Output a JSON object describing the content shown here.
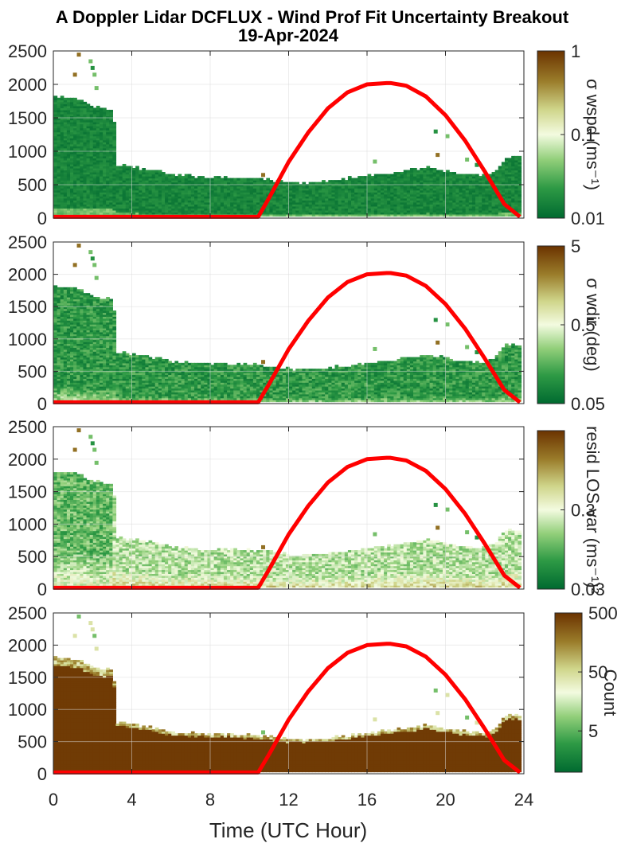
{
  "figure": {
    "title_line1": "A Doppler Lidar DCFLUX - Wind Prof Fit Uncertainty Breakout",
    "title_line2": "19-Apr-2024",
    "xlabel": "Time (UTC Hour)"
  },
  "colors": {
    "sun_curve": "#ff0000",
    "cmap_low": "#006a30",
    "cmap_mid": "#f3fbe0",
    "cmap_high": "#6b3300"
  },
  "chart_data": [
    {
      "type": "heatmap",
      "name": "sigma wspd",
      "colorbar_label": "σ wspd (ms⁻¹)",
      "colorbar_scale": "log",
      "colorbar_range": [
        0.01,
        1
      ],
      "colorbar_ticks": [
        "1",
        "0.1",
        "0.01"
      ],
      "colorbar_tick_values": [
        1,
        0.1,
        0.01
      ],
      "x_range": [
        0,
        24
      ],
      "y_range": [
        0,
        2500
      ],
      "y_ticks": [
        "2500",
        "2000",
        "1500",
        "1000",
        "500",
        "0"
      ],
      "y_tick_values": [
        2500,
        2000,
        1500,
        1000,
        500,
        0
      ]
    },
    {
      "type": "heatmap",
      "name": "sigma wdir",
      "colorbar_label": "σ wdir (deg)",
      "colorbar_scale": "log",
      "colorbar_range": [
        0.05,
        5
      ],
      "colorbar_ticks": [
        "5",
        "0.5",
        "0.05"
      ],
      "colorbar_tick_values": [
        5,
        0.5,
        0.05
      ],
      "x_range": [
        0,
        24
      ],
      "y_range": [
        0,
        2500
      ],
      "y_ticks": [
        "2500",
        "2000",
        "1500",
        "1000",
        "500",
        "0"
      ],
      "y_tick_values": [
        2500,
        2000,
        1500,
        1000,
        500,
        0
      ]
    },
    {
      "type": "heatmap",
      "name": "resid LOS var",
      "colorbar_label": "resid LOS var (ms⁻¹)²",
      "colorbar_scale": "log",
      "colorbar_range": [
        0.03,
        3
      ],
      "colorbar_ticks": [
        "0.3",
        "0.03"
      ],
      "colorbar_tick_values": [
        0.3,
        0.03
      ],
      "x_range": [
        0,
        24
      ],
      "y_range": [
        0,
        2500
      ],
      "y_ticks": [
        "2500",
        "2000",
        "1500",
        "1000",
        "500",
        "0"
      ],
      "y_tick_values": [
        2500,
        2000,
        1500,
        1000,
        500,
        0
      ]
    },
    {
      "type": "heatmap",
      "name": "count",
      "colorbar_label": "Count",
      "colorbar_scale": "log",
      "colorbar_range": [
        1,
        500
      ],
      "colorbar_ticks": [
        "500",
        "50",
        "5"
      ],
      "colorbar_tick_values": [
        500,
        50,
        5
      ],
      "x_range": [
        0,
        24
      ],
      "y_range": [
        0,
        2500
      ],
      "y_ticks": [
        "2500",
        "2000",
        "1500",
        "1000",
        "500",
        "0"
      ],
      "y_tick_values": [
        2500,
        2000,
        1500,
        1000,
        500,
        0
      ],
      "x_ticks": [
        "0",
        "4",
        "8",
        "12",
        "16",
        "20",
        "24"
      ],
      "x_tick_values": [
        0,
        4,
        8,
        12,
        16,
        20,
        24
      ]
    }
  ],
  "profile_top": {
    "hours": [
      0,
      1,
      2,
      3,
      3.1,
      4,
      5,
      6,
      7,
      8,
      9,
      10,
      11,
      12,
      13,
      14,
      15,
      16,
      17,
      18,
      19,
      20,
      21,
      22,
      22.5,
      23,
      23.7
    ],
    "heights": [
      1800,
      1780,
      1650,
      1600,
      780,
      760,
      700,
      640,
      620,
      600,
      600,
      590,
      560,
      520,
      520,
      540,
      580,
      620,
      650,
      700,
      750,
      680,
      640,
      620,
      700,
      900,
      900
    ]
  },
  "sun_elevation": {
    "hours": [
      0,
      1,
      2,
      3,
      4,
      5,
      6,
      7,
      8,
      9,
      10,
      10.45,
      11,
      12,
      13,
      14,
      15,
      16,
      17,
      17.2,
      18,
      19,
      20,
      21,
      22,
      23,
      23.8
    ],
    "values": [
      0,
      0,
      0,
      0,
      0,
      0,
      0,
      0,
      0,
      0,
      0,
      0,
      280,
      820,
      1260,
      1620,
      1860,
      1980,
      2000,
      2000,
      1960,
      1800,
      1520,
      1140,
      680,
      190,
      0
    ]
  }
}
